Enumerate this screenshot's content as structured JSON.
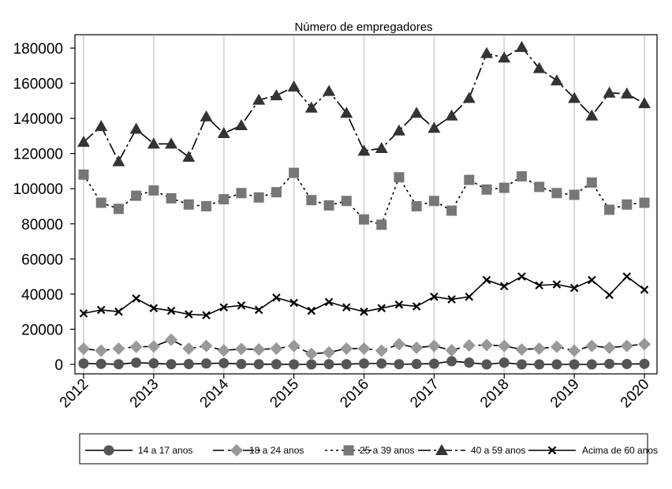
{
  "chart_data": {
    "type": "line",
    "title": "Número de empregadores",
    "xlabel": "",
    "ylabel": "",
    "ylim": [
      0,
      180000
    ],
    "xlim": [
      2012,
      2020
    ],
    "y_ticks": [
      0,
      20000,
      40000,
      60000,
      80000,
      100000,
      120000,
      140000,
      160000,
      180000
    ],
    "y_tick_labels": [
      "0",
      "20000",
      "40000",
      "60000",
      "80000",
      "100000",
      "120000",
      "140000",
      "160000",
      "180000"
    ],
    "x_ticks": [
      2012,
      2013,
      2014,
      2015,
      2016,
      2017,
      2018,
      2019,
      2020
    ],
    "x_tick_labels": [
      "2012",
      "2013",
      "2014",
      "2015",
      "2016",
      "2017",
      "2018",
      "2019",
      "2020"
    ],
    "grid": "vertical",
    "legend_position": "bottom",
    "x": [
      2012,
      2012.25,
      2012.5,
      2012.75,
      2013,
      2013.25,
      2013.5,
      2013.75,
      2014,
      2014.25,
      2014.5,
      2014.75,
      2015,
      2015.25,
      2015.5,
      2015.75,
      2016,
      2016.25,
      2016.5,
      2016.75,
      2017,
      2017.25,
      2017.5,
      2017.75,
      2018,
      2018.25,
      2018.5,
      2018.75,
      2019,
      2019.25,
      2019.5,
      2019.75,
      2020
    ],
    "series": [
      {
        "name": "14 a 17 anos",
        "color": "#555555",
        "marker": "circle",
        "dash": "solid",
        "values": [
          500,
          300,
          100,
          1000,
          600,
          100,
          200,
          500,
          700,
          200,
          100,
          100,
          0,
          0,
          100,
          100,
          500,
          500,
          100,
          200,
          400,
          1800,
          1000,
          0,
          1000,
          0,
          0,
          0,
          0,
          0,
          300,
          200,
          300
        ]
      },
      {
        "name": "18 a 24 anos",
        "color": "#999999",
        "marker": "diamond",
        "dash": "longdash",
        "values": [
          8900,
          7800,
          9000,
          10000,
          10200,
          14000,
          9000,
          10500,
          7900,
          8800,
          8500,
          9000,
          10500,
          6000,
          6800,
          9000,
          9000,
          7800,
          11500,
          9500,
          10500,
          8000,
          10800,
          11000,
          10500,
          8500,
          9000,
          10000,
          7800,
          10500,
          9500,
          10500,
          11500
        ]
      },
      {
        "name": "25 a 39 anos",
        "color": "#777777",
        "marker": "square",
        "dash": "dotted",
        "values": [
          108000,
          92000,
          88500,
          96000,
          99000,
          94500,
          91000,
          90000,
          94000,
          97500,
          95000,
          98000,
          109000,
          93500,
          90500,
          93000,
          82500,
          79500,
          106500,
          90000,
          93000,
          87500,
          105000,
          99500,
          100500,
          107000,
          101000,
          97500,
          96500,
          103500,
          88000,
          91000,
          92000
        ]
      },
      {
        "name": "40 a 59 anos",
        "color": "#333333",
        "marker": "triangle",
        "dash": "dashdot",
        "values": [
          126500,
          135500,
          115500,
          134000,
          125500,
          125500,
          118000,
          141000,
          131500,
          136000,
          150500,
          153000,
          158000,
          146000,
          155500,
          143000,
          121500,
          123000,
          133000,
          143000,
          134500,
          141500,
          151500,
          177000,
          174500,
          180500,
          168500,
          161500,
          151500,
          141500,
          154500,
          154000,
          148500
        ]
      },
      {
        "name": "Acima de 60 anos",
        "color": "#000000",
        "marker": "x",
        "dash": "solid",
        "values": [
          29000,
          31000,
          30000,
          37500,
          32000,
          30500,
          28500,
          28000,
          32500,
          33500,
          31000,
          38000,
          35000,
          30500,
          35500,
          32500,
          30000,
          32000,
          34000,
          33000,
          38500,
          37000,
          38500,
          48000,
          44500,
          50000,
          45000,
          45500,
          43500,
          48000,
          39500,
          50000,
          42500
        ]
      }
    ]
  }
}
